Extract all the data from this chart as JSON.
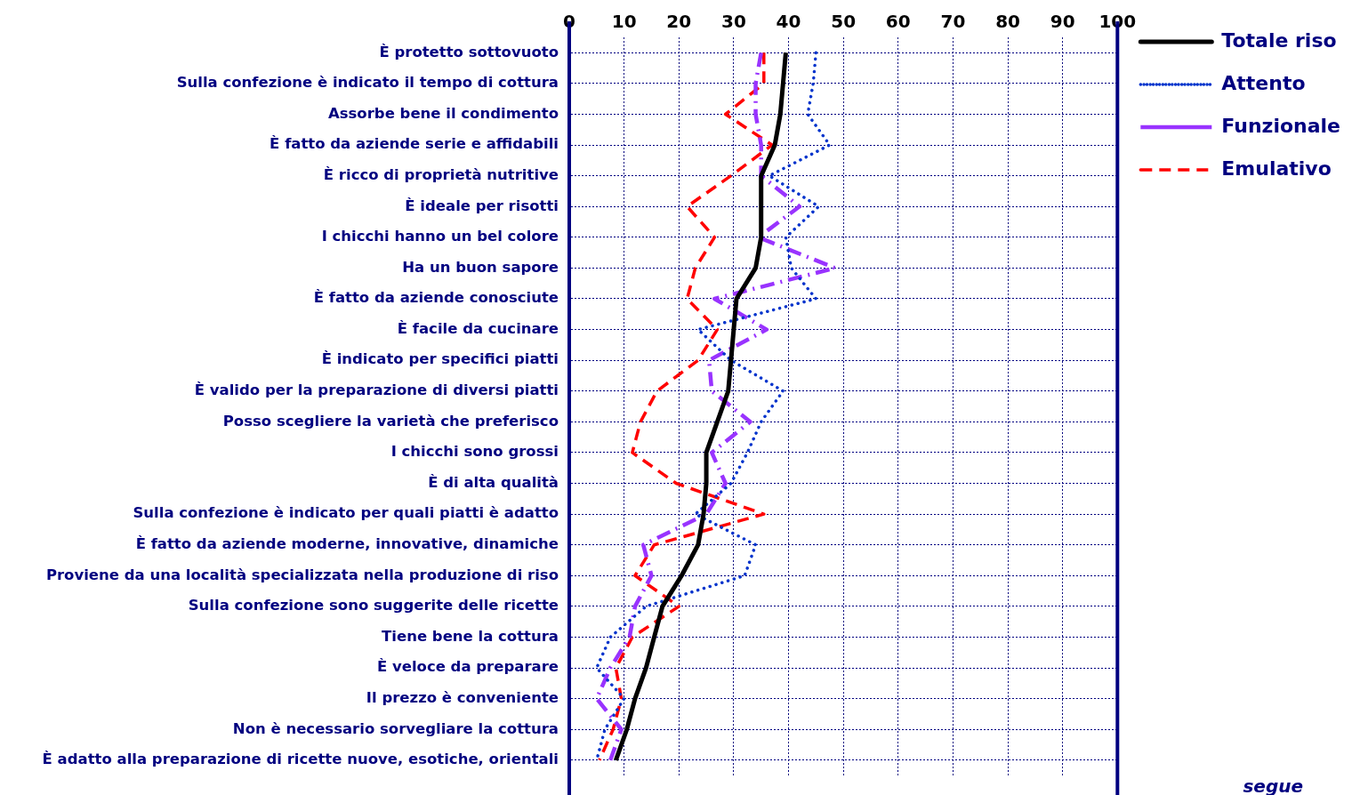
{
  "chart_data": {
    "type": "line",
    "orientation": "horizontal",
    "categories": [
      "È protetto sottovuoto",
      "Sulla confezione è indicato il tempo di cottura",
      "Assorbe bene il condimento",
      "È fatto da aziende serie e affidabili",
      "È ricco di proprietà nutritive",
      "È ideale per risotti",
      "I chicchi hanno un bel colore",
      "Ha un buon sapore",
      "È fatto da aziende conosciute",
      "È facile da cucinare",
      "È indicato per specifici piatti",
      "È valido per la preparazione di diversi piatti",
      "Posso scegliere la varietà che preferisco",
      "I chicchi sono grossi",
      "È di alta qualità",
      "Sulla confezione è indicato per quali piatti è adatto",
      "È fatto da aziende moderne, innovative, dinamiche",
      "Proviene da una località specializzata nella produzione di riso",
      "Sulla confezione sono suggerite delle ricette",
      "Tiene bene la cottura",
      "È veloce da preparare",
      "Il prezzo è conveniente",
      "Non è necessario sorvegliare la cottura",
      "È adatto alla preparazione di ricette nuove, esotiche, orientali"
    ],
    "series": [
      {
        "name": "Totale riso",
        "color": "#000000",
        "line_style": "solid",
        "values": [
          39.5,
          39,
          38.5,
          37.5,
          35,
          35,
          35,
          34,
          30.5,
          30,
          29.5,
          29,
          27,
          25,
          25,
          24.5,
          23.5,
          20.5,
          17,
          15.5,
          14,
          12,
          10.5,
          8.5
        ]
      },
      {
        "name": "Attento",
        "color": "#0033cc",
        "line_style": "dotted",
        "values": [
          45,
          44.5,
          43.5,
          47.5,
          36.5,
          45.5,
          39.5,
          40.5,
          45,
          23.5,
          29.5,
          39,
          35,
          32.5,
          29.5,
          23,
          34,
          32,
          14,
          7.5,
          5,
          10,
          6.5,
          5
        ]
      },
      {
        "name": "Funzionale",
        "color": "#9933ff",
        "line_style": "dashdot",
        "values": [
          35,
          34,
          34,
          35,
          35,
          42,
          34.5,
          48.5,
          26.5,
          36,
          25.5,
          26,
          33,
          26,
          28.5,
          25,
          13.5,
          15,
          12,
          11,
          7.5,
          5,
          9.5,
          7.5
        ]
      },
      {
        "name": "Emulativo",
        "color": "#ff0000",
        "line_style": "dashed",
        "values": [
          35.5,
          35.5,
          28.5,
          37,
          29.5,
          21.5,
          26.5,
          23,
          21.5,
          27,
          23.5,
          16,
          13,
          11.5,
          19.5,
          35.5,
          15.5,
          12,
          20,
          11.5,
          8.5,
          9.5,
          8,
          5.5
        ]
      }
    ],
    "xlim": [
      0,
      100
    ],
    "xticks": [
      0,
      10,
      20,
      30,
      40,
      50,
      60,
      70,
      80,
      90,
      100
    ],
    "grid": true,
    "legend": "top right",
    "marker": "none",
    "annotations": [
      "segue"
    ]
  }
}
